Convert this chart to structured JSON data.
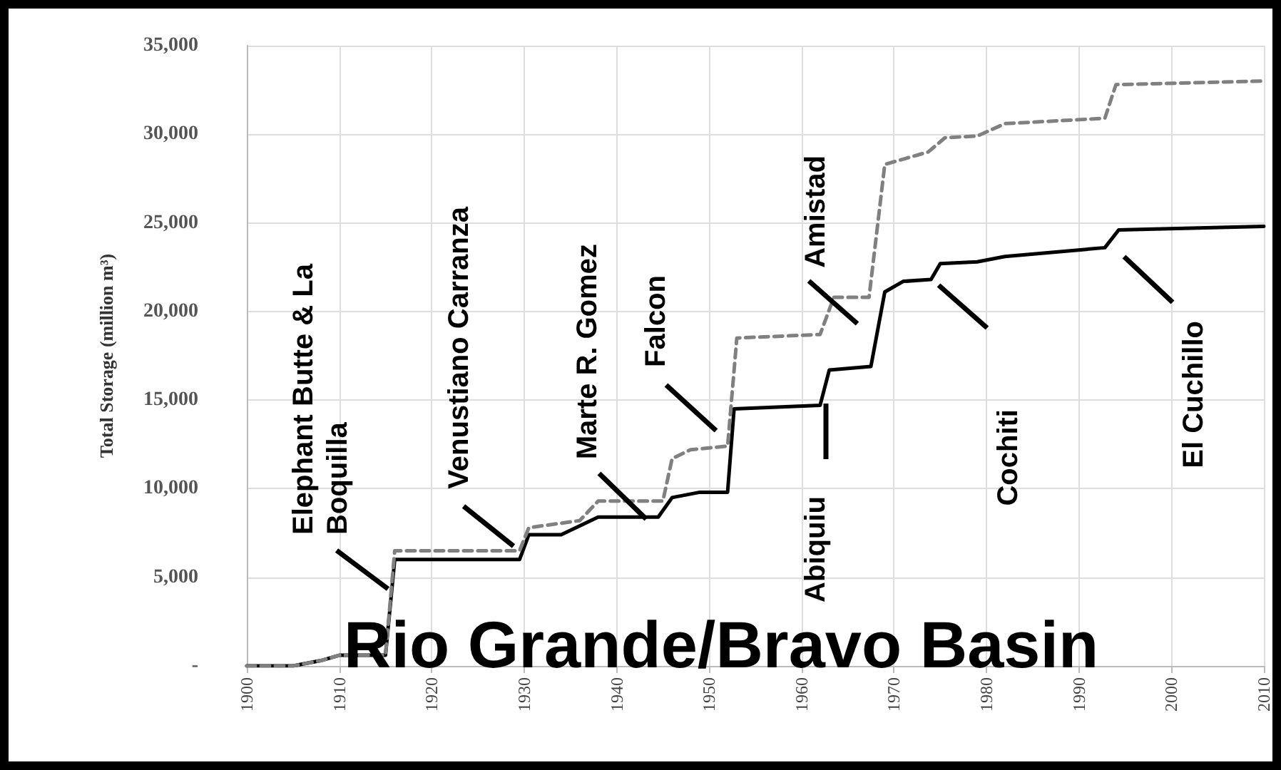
{
  "chart_data": {
    "type": "line",
    "title": "Rio Grande/Bravo Basin",
    "ylabel": "Total Storage (million m³)",
    "xlim": [
      1900,
      2010
    ],
    "xticks": [
      1900,
      1910,
      1920,
      1930,
      1940,
      1950,
      1960,
      1970,
      1980,
      1990,
      2000,
      2010
    ],
    "ylim": [
      0,
      35000
    ],
    "yticks": [
      {
        "value": 0,
        "label": "-"
      },
      {
        "value": 5000,
        "label": "5,000"
      },
      {
        "value": 10000,
        "label": "10,000"
      },
      {
        "value": 15000,
        "label": "15,000"
      },
      {
        "value": 20000,
        "label": "20,000"
      },
      {
        "value": 25000,
        "label": "25,000"
      },
      {
        "value": 30000,
        "label": "30,000"
      },
      {
        "value": 35000,
        "label": "35,000"
      }
    ],
    "grid": true,
    "marker": "none",
    "series": [
      {
        "color": "#000000",
        "line_style": "solid",
        "x": [
          1900,
          1905,
          1908,
          1910,
          1915,
          1916,
          1929.5,
          1930.5,
          1934,
          1938,
          1944.5,
          1946,
          1949,
          1952,
          1952.7,
          1962,
          1963,
          1967.5,
          1969,
          1971,
          1974,
          1975,
          1979,
          1982,
          1992.8,
          1994.3,
          2010
        ],
        "values": [
          0,
          0,
          300,
          600,
          600,
          6000,
          6000,
          7400,
          7400,
          8400,
          8400,
          9500,
          9800,
          9800,
          14500,
          14700,
          16700,
          16900,
          21100,
          21700,
          21800,
          22700,
          22800,
          23100,
          23600,
          24600,
          24800
        ]
      },
      {
        "color": "#808080",
        "line_style": "dashed",
        "x": [
          1900,
          1905,
          1908,
          1910,
          1915,
          1916,
          1929.5,
          1930.5,
          1936,
          1938,
          1945,
          1946,
          1948,
          1952,
          1953,
          1962,
          1963.5,
          1967.3,
          1969,
          1973.7,
          1975.5,
          1979,
          1982,
          1992.8,
          1994,
          2010
        ],
        "values": [
          0,
          0,
          300,
          600,
          600,
          6500,
          6500,
          7800,
          8200,
          9300,
          9300,
          11700,
          12200,
          12400,
          18500,
          18700,
          20800,
          20800,
          28300,
          29000,
          29800,
          29900,
          30600,
          30900,
          32800,
          33000
        ]
      }
    ],
    "annotations": [
      "Elephant Butte & La Boquilla",
      "Venustiano Carranza",
      "Marte R. Gomez",
      "Falcon",
      "Amistad",
      "Abiquiu",
      "Cochiti",
      "El Cuchillo"
    ]
  }
}
